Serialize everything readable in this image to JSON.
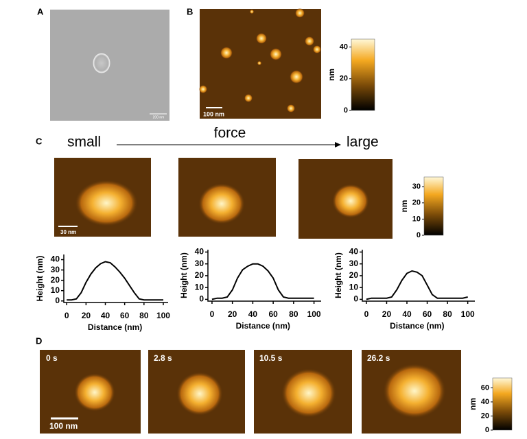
{
  "panels": [
    {
      "label": "A",
      "scale_bar": "200 nm"
    },
    {
      "label": "B",
      "scale_bar": "100 nm"
    },
    {
      "label": "C",
      "left": "small",
      "arrow": "force",
      "right": "large",
      "scale_bar": "30 nm"
    },
    {
      "label": "D",
      "scale_bar": "100 nm",
      "times": [
        "0 s",
        "2.8 s",
        "10.5 s",
        "26.2 s"
      ]
    }
  ],
  "colorbars": [
    {
      "unit": "nm",
      "lim": [
        0,
        45
      ],
      "ticks": [
        0,
        20,
        40
      ]
    },
    {
      "unit": "nm",
      "lim": [
        0,
        36
      ],
      "ticks": [
        0,
        10,
        20,
        30
      ]
    },
    {
      "unit": "nm",
      "lim": [
        0,
        74
      ],
      "ticks": [
        0,
        20,
        40,
        60
      ]
    }
  ],
  "chart_data": [
    {
      "type": "line",
      "xlabel": "Distance (nm)",
      "ylabel": "Height (nm)",
      "color": "#000000",
      "x": [
        0,
        5,
        10,
        15,
        20,
        25,
        30,
        35,
        40,
        45,
        50,
        55,
        60,
        65,
        70,
        75,
        80,
        85,
        90,
        95,
        100
      ],
      "values": [
        1,
        1,
        2,
        8,
        18,
        26,
        32,
        36,
        38,
        37,
        33,
        28,
        22,
        15,
        8,
        2,
        1,
        1,
        1,
        1,
        1
      ],
      "xlim": [
        -3,
        105
      ],
      "ylim": [
        -1.5,
        45
      ],
      "xticks": [
        0,
        20,
        40,
        60,
        80,
        100
      ],
      "yticks": [
        0,
        10,
        20,
        30,
        40
      ]
    },
    {
      "type": "line",
      "xlabel": "Distance (nm)",
      "ylabel": "Height (nm)",
      "color": "#000000",
      "x": [
        0,
        5,
        10,
        15,
        20,
        25,
        30,
        35,
        40,
        45,
        50,
        55,
        60,
        65,
        70,
        75,
        80,
        85,
        90,
        95,
        100
      ],
      "values": [
        0,
        1,
        1,
        2,
        8,
        18,
        25,
        28,
        30,
        30,
        28,
        24,
        18,
        8,
        2,
        1,
        1,
        1,
        1,
        1,
        1
      ],
      "xlim": [
        -4,
        107
      ],
      "ylim": [
        -1.5,
        42
      ],
      "xticks": [
        0,
        20,
        40,
        60,
        80,
        100
      ],
      "yticks": [
        0,
        10,
        20,
        30,
        40
      ]
    },
    {
      "type": "line",
      "xlabel": "Distance (nm)",
      "ylabel": "Height (nm)",
      "color": "#000000",
      "x": [
        0,
        5,
        10,
        15,
        20,
        25,
        30,
        35,
        40,
        45,
        50,
        55,
        60,
        65,
        70,
        75,
        80,
        85,
        90,
        95,
        100
      ],
      "values": [
        0,
        1,
        1,
        1,
        1,
        2,
        8,
        16,
        22,
        24,
        23,
        20,
        12,
        4,
        1,
        1,
        1,
        1,
        1,
        1,
        2
      ],
      "xlim": [
        -4,
        107
      ],
      "ylim": [
        -1.5,
        42
      ],
      "xticks": [
        0,
        20,
        40,
        60,
        80,
        100
      ],
      "yticks": [
        0,
        10,
        20,
        30,
        40
      ]
    }
  ]
}
